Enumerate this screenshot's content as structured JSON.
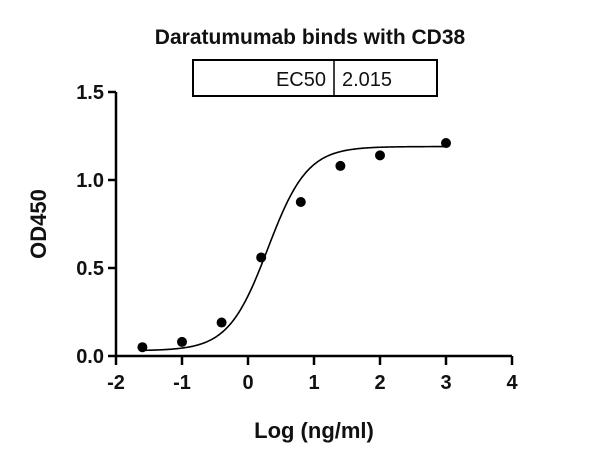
{
  "chart_data": {
    "type": "scatter",
    "title": "Daratumumab binds with CD38",
    "xlabel": "Log (ng/ml)",
    "ylabel": "OD450",
    "xlim": [
      -2,
      4
    ],
    "ylim": [
      0,
      1.5
    ],
    "x_ticks": [
      "-2",
      "-1",
      "0",
      "1",
      "2",
      "3",
      "4"
    ],
    "y_ticks": [
      "0.0",
      "0.5",
      "1.0",
      "1.5"
    ],
    "grid": false,
    "legend": null,
    "series": [
      {
        "name": "Daratumumab",
        "x": [
          -1.6,
          -1.0,
          -0.4,
          0.2,
          0.8,
          1.4,
          2.0,
          3.0
        ],
        "y": [
          0.05,
          0.08,
          0.19,
          0.56,
          0.875,
          1.08,
          1.14,
          1.21
        ],
        "marker": "filled-circle",
        "fit": "four-parameter logistic curve"
      }
    ],
    "annotation_table": {
      "rows": [
        {
          "label": "EC50",
          "value": "2.015"
        }
      ]
    }
  }
}
